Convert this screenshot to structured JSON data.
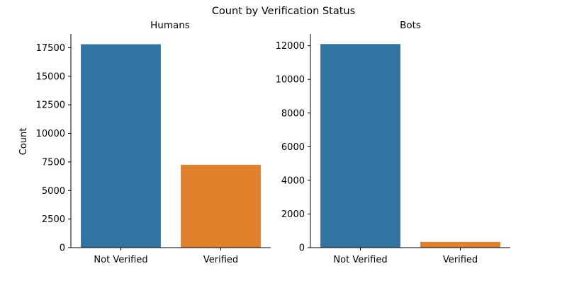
{
  "figure": {
    "suptitle": "Count by Verification Status"
  },
  "chart_data": [
    {
      "type": "bar",
      "title": "Humans",
      "xlabel": "",
      "ylabel": "Count",
      "categories": [
        "Not Verified",
        "Verified"
      ],
      "values": [
        17800,
        7250
      ],
      "colors": [
        "#3274a1",
        "#e1812c"
      ],
      "ylim": [
        0,
        18700
      ],
      "yticks": [
        0,
        2500,
        5000,
        7500,
        10000,
        12500,
        15000,
        17500
      ]
    },
    {
      "type": "bar",
      "title": "Bots",
      "xlabel": "",
      "ylabel": "",
      "categories": [
        "Not Verified",
        "Verified"
      ],
      "values": [
        12100,
        340
      ],
      "colors": [
        "#3274a1",
        "#e1812c"
      ],
      "ylim": [
        0,
        12700
      ],
      "yticks": [
        0,
        2000,
        4000,
        6000,
        8000,
        10000,
        12000
      ]
    }
  ]
}
